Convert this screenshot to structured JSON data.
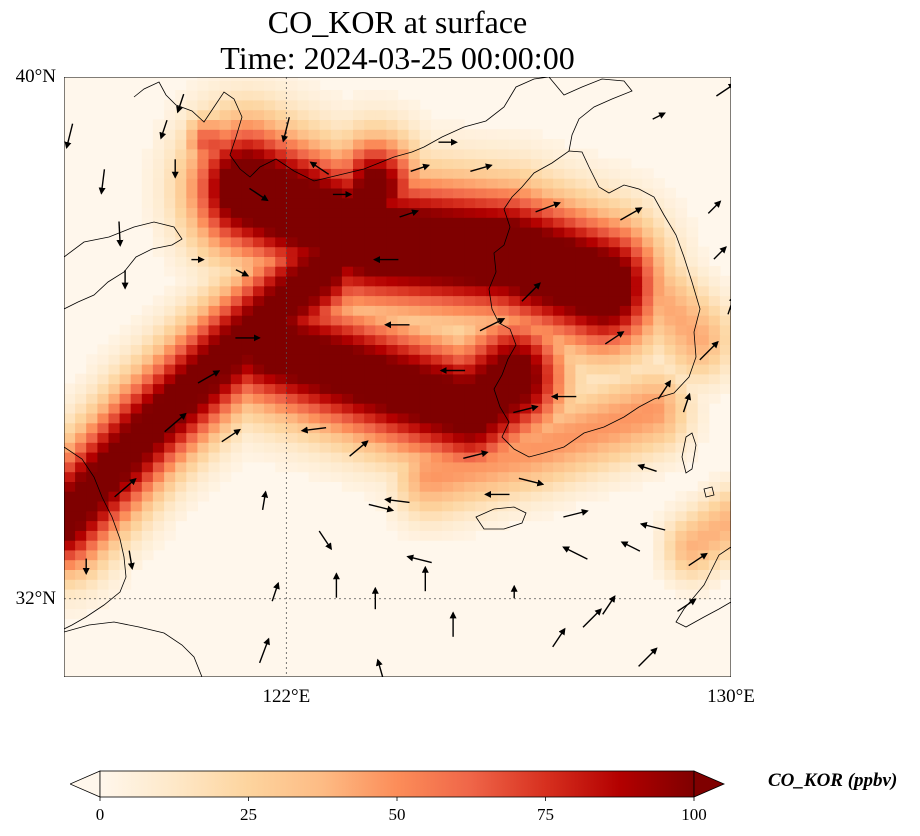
{
  "title": {
    "line1": "CO_KOR at surface",
    "line2": "Time: 2024-03-25 00:00:00"
  },
  "map": {
    "lon_range": [
      118,
      130
    ],
    "lat_range": [
      30.8,
      40
    ],
    "gridlines": {
      "lon": [
        122,
        130
      ],
      "lat": [
        32,
        40
      ]
    },
    "lat_ticks": [
      {
        "value": 40,
        "label": "40°N"
      },
      {
        "value": 32,
        "label": "32°N"
      }
    ],
    "lon_ticks": [
      {
        "value": 122,
        "label": "122°E"
      },
      {
        "value": 130,
        "label": "130°E"
      }
    ],
    "field": {
      "variable": "CO_KOR",
      "plumes": [
        {
          "name": "west-plume",
          "path": [
            [
              121.3,
              38.3
            ],
            [
              123.5,
              37.5
            ],
            [
              126.0,
              37.3
            ],
            [
              127.7,
              36.8
            ]
          ],
          "width": 0.7,
          "peak": 100
        },
        {
          "name": "southwest-arm",
          "path": [
            [
              118.0,
              33.2
            ],
            [
              119.5,
              34.6
            ],
            [
              121.0,
              35.8
            ],
            [
              122.7,
              37.1
            ],
            [
              123.6,
              38.3
            ]
          ],
          "width": 0.55,
          "peak": 88
        },
        {
          "name": "mid-plume",
          "path": [
            [
              121.6,
              35.9
            ],
            [
              123.8,
              35.3
            ],
            [
              125.3,
              34.9
            ],
            [
              126.1,
              35.4
            ]
          ],
          "width": 0.65,
          "peak": 92
        },
        {
          "name": "southern-coast",
          "path": [
            [
              124.6,
              33.9
            ],
            [
              126.5,
              34.3
            ],
            [
              128.6,
              34.9
            ]
          ],
          "width": 0.45,
          "peak": 38
        },
        {
          "name": "korea-east",
          "path": [
            [
              126.8,
              37.8
            ],
            [
              128.3,
              37.0
            ],
            [
              129.4,
              36.0
            ]
          ],
          "width": 0.45,
          "peak": 34
        },
        {
          "name": "japan-patch",
          "path": [
            [
              129.3,
              32.8
            ],
            [
              130.0,
              33.2
            ]
          ],
          "width": 0.35,
          "peak": 32
        },
        {
          "name": "shandong-north",
          "path": [
            [
              120.6,
              39.0
            ],
            [
              121.4,
              38.4
            ]
          ],
          "width": 0.3,
          "peak": 55
        }
      ]
    },
    "wind_vectors": [
      [
        118.1,
        39.1,
        -0.1,
        -0.4
      ],
      [
        118.7,
        38.4,
        -0.05,
        -0.4
      ],
      [
        119.0,
        37.6,
        0.02,
        -0.4
      ],
      [
        119.1,
        36.9,
        0.0,
        -0.3
      ],
      [
        120.1,
        39.6,
        -0.1,
        -0.3
      ],
      [
        120.0,
        38.6,
        0.0,
        -0.3
      ],
      [
        120.4,
        37.2,
        0.2,
        0.0
      ],
      [
        121.5,
        38.2,
        0.3,
        -0.2
      ],
      [
        121.2,
        37.0,
        0.2,
        -0.1
      ],
      [
        121.3,
        36.0,
        0.4,
        0.0
      ],
      [
        120.6,
        35.4,
        0.35,
        0.2
      ],
      [
        120.0,
        34.7,
        0.35,
        0.3
      ],
      [
        119.1,
        33.7,
        0.35,
        0.3
      ],
      [
        118.4,
        32.5,
        0.0,
        -0.25
      ],
      [
        119.2,
        32.6,
        0.05,
        -0.3
      ],
      [
        121.0,
        34.5,
        0.3,
        0.2
      ],
      [
        122.5,
        34.6,
        -0.4,
        -0.05
      ],
      [
        123.3,
        34.3,
        0.3,
        0.25
      ],
      [
        123.7,
        33.4,
        0.4,
        -0.1
      ],
      [
        122.9,
        32.2,
        0.0,
        0.4
      ],
      [
        124.0,
        33.5,
        -0.4,
        0.05
      ],
      [
        124.4,
        32.6,
        -0.4,
        0.1
      ],
      [
        121.6,
        33.5,
        0.05,
        0.3
      ],
      [
        121.8,
        32.1,
        0.1,
        0.3
      ],
      [
        121.6,
        31.2,
        0.15,
        0.4
      ],
      [
        122.7,
        32.9,
        0.2,
        -0.3
      ],
      [
        123.6,
        32.0,
        0.0,
        0.35
      ],
      [
        125.0,
        31.6,
        0.0,
        0.4
      ],
      [
        124.5,
        32.3,
        0.0,
        0.4
      ],
      [
        124.9,
        39.0,
        0.3,
        0.0
      ],
      [
        124.4,
        38.6,
        0.3,
        0.1
      ],
      [
        124.2,
        37.9,
        0.3,
        0.1
      ],
      [
        123.8,
        37.2,
        -0.4,
        0.0
      ],
      [
        124.0,
        36.2,
        -0.4,
        0.0
      ],
      [
        125.0,
        35.5,
        -0.4,
        0.0
      ],
      [
        125.7,
        36.2,
        0.4,
        0.2
      ],
      [
        126.4,
        36.7,
        0.3,
        0.3
      ],
      [
        126.7,
        38.0,
        0.4,
        0.15
      ],
      [
        125.5,
        38.6,
        0.35,
        0.1
      ],
      [
        125.8,
        33.6,
        -0.4,
        0.0
      ],
      [
        126.3,
        34.9,
        0.4,
        0.1
      ],
      [
        125.4,
        34.2,
        0.4,
        0.1
      ],
      [
        126.4,
        33.8,
        0.4,
        -0.1
      ],
      [
        127.2,
        33.3,
        0.4,
        0.1
      ],
      [
        127.2,
        32.7,
        -0.4,
        0.2
      ],
      [
        127.5,
        31.7,
        0.3,
        0.3
      ],
      [
        126.1,
        32.1,
        0.0,
        0.2
      ],
      [
        126.9,
        31.4,
        0.2,
        0.3
      ],
      [
        127.0,
        35.1,
        -0.4,
        0.0
      ],
      [
        127.9,
        36.0,
        0.3,
        0.2
      ],
      [
        128.2,
        37.9,
        0.35,
        0.2
      ],
      [
        128.7,
        39.4,
        0.2,
        0.1
      ],
      [
        128.8,
        35.2,
        0.2,
        0.3
      ],
      [
        129.2,
        35.0,
        0.1,
        0.3
      ],
      [
        128.5,
        34.0,
        -0.3,
        0.1
      ],
      [
        128.6,
        33.1,
        -0.4,
        0.1
      ],
      [
        128.2,
        32.8,
        -0.3,
        0.15
      ],
      [
        127.8,
        31.9,
        0.2,
        0.3
      ],
      [
        128.5,
        31.1,
        0.3,
        0.3
      ],
      [
        129.2,
        31.9,
        0.3,
        0.2
      ],
      [
        129.4,
        32.6,
        0.3,
        0.2
      ],
      [
        129.6,
        35.8,
        0.3,
        0.3
      ],
      [
        130.0,
        36.5,
        0.1,
        0.3
      ],
      [
        129.8,
        37.3,
        0.2,
        0.2
      ],
      [
        129.7,
        38.0,
        0.2,
        0.2
      ],
      [
        129.9,
        39.8,
        0.3,
        0.2
      ],
      [
        123.0,
        38.2,
        0.3,
        0.0
      ],
      [
        122.6,
        38.6,
        -0.3,
        0.2
      ],
      [
        122.0,
        39.2,
        -0.1,
        -0.4
      ],
      [
        119.8,
        39.2,
        -0.1,
        -0.3
      ],
      [
        123.7,
        30.9,
        -0.1,
        0.35
      ]
    ]
  },
  "colorbar": {
    "label": "CO_KOR (ppbv)",
    "min": 0,
    "max": 100,
    "extend": "both",
    "colormap": "OrRd",
    "stops": [
      "#fff7ec",
      "#fee8c8",
      "#fdd49e",
      "#fdbb84",
      "#fc8d59",
      "#ef6548",
      "#d7301f",
      "#b30000",
      "#7f0000"
    ],
    "ticks": [
      {
        "value": 0,
        "label": "0"
      },
      {
        "value": 25,
        "label": "25"
      },
      {
        "value": 50,
        "label": "50"
      },
      {
        "value": 75,
        "label": "75"
      },
      {
        "value": 100,
        "label": "100"
      }
    ]
  }
}
